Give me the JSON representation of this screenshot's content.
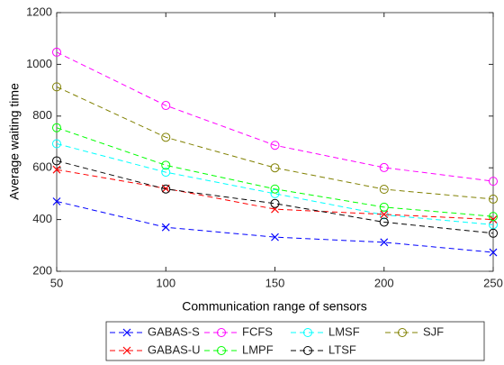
{
  "chart_data": {
    "type": "line",
    "xlabel": "Communication range of sensors",
    "ylabel": "Average waiting time",
    "x": [
      50,
      100,
      150,
      200,
      250
    ],
    "xlim": [
      50,
      250
    ],
    "xticks": [
      50,
      100,
      150,
      200,
      250
    ],
    "ylim": [
      200,
      1200
    ],
    "yticks": [
      200,
      400,
      600,
      800,
      1000,
      1200
    ],
    "legend": "bottom",
    "series": [
      {
        "name": "GABAS-S",
        "color": "#0000ff",
        "marker": "x",
        "values": [
          470,
          370,
          332,
          312,
          273
        ]
      },
      {
        "name": "FCFS",
        "color": "#ff00ff",
        "marker": "o",
        "values": [
          1047,
          841,
          687,
          601,
          548
        ]
      },
      {
        "name": "LMSF",
        "color": "#00ffff",
        "marker": "o",
        "values": [
          693,
          583,
          500,
          418,
          380
        ]
      },
      {
        "name": "SJF",
        "color": "#808000",
        "marker": "o",
        "values": [
          913,
          718,
          600,
          517,
          479
        ]
      },
      {
        "name": "GABAS-U",
        "color": "#ff0000",
        "marker": "x",
        "values": [
          593,
          520,
          440,
          420,
          400
        ]
      },
      {
        "name": "LMPF",
        "color": "#00ff00",
        "marker": "o",
        "values": [
          755,
          610,
          518,
          448,
          412
        ]
      },
      {
        "name": "LTSF",
        "color": "#000000",
        "marker": "o",
        "values": [
          627,
          518,
          462,
          390,
          347
        ]
      }
    ]
  }
}
